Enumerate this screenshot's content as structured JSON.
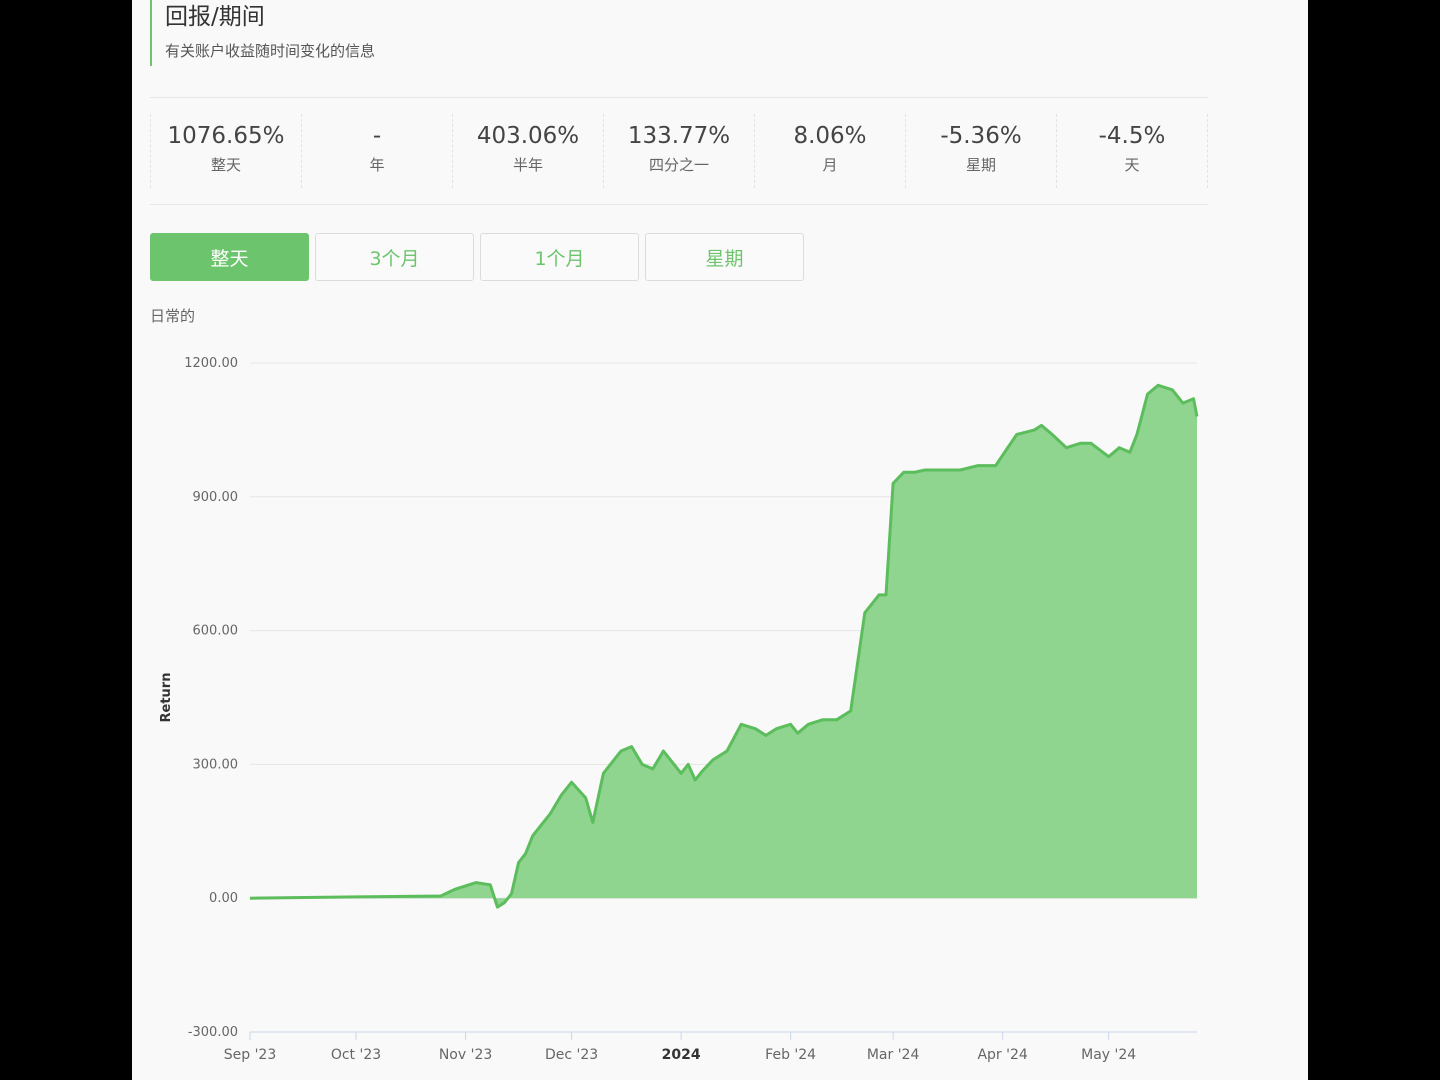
{
  "header": {
    "title": "回报/期间",
    "subtitle": "有关账户收益随时间变化的信息"
  },
  "stats": [
    {
      "value": "1076.65%",
      "label": "整天"
    },
    {
      "value": "-",
      "label": "年"
    },
    {
      "value": "403.06%",
      "label": "半年"
    },
    {
      "value": "133.77%",
      "label": "四分之一"
    },
    {
      "value": "8.06%",
      "label": "月"
    },
    {
      "value": "-5.36%",
      "label": "星期"
    },
    {
      "value": "-4.5%",
      "label": "天"
    }
  ],
  "tabs": [
    {
      "label": "整天",
      "active": true
    },
    {
      "label": "3个月",
      "active": false
    },
    {
      "label": "1个月",
      "active": false
    },
    {
      "label": "星期",
      "active": false
    }
  ],
  "chart_caption": "日常的",
  "colors": {
    "accent": "#6cc56c",
    "area_fill": "#8fd48f",
    "line": "#5cbd5c"
  },
  "chart_data": {
    "type": "area",
    "xlabel": "",
    "ylabel": "Return",
    "ylim": [
      -300,
      1200
    ],
    "yticks": [
      "1200.00",
      "900.00",
      "600.00",
      "300.00",
      "0.00",
      "-300.00"
    ],
    "yticks_values": [
      1200,
      900,
      600,
      300,
      0,
      -300
    ],
    "xlim": [
      "2023-09-01",
      "2024-05-26"
    ],
    "xticks": [
      {
        "date": "2023-09-01",
        "label": "Sep '23"
      },
      {
        "date": "2023-10-01",
        "label": "Oct '23"
      },
      {
        "date": "2023-11-01",
        "label": "Nov '23"
      },
      {
        "date": "2023-12-01",
        "label": "Dec '23"
      },
      {
        "date": "2024-01-01",
        "label": "2024",
        "bold": true
      },
      {
        "date": "2024-02-01",
        "label": "Feb '24"
      },
      {
        "date": "2024-03-01",
        "label": "Mar '24"
      },
      {
        "date": "2024-04-01",
        "label": "Apr '24"
      },
      {
        "date": "2024-05-01",
        "label": "May '24"
      }
    ],
    "grid": true,
    "series": [
      {
        "x": [
          "2023-09-01",
          "2023-10-01",
          "2023-10-25",
          "2023-10-29",
          "2023-11-04",
          "2023-11-08",
          "2023-11-10",
          "2023-11-12",
          "2023-11-14",
          "2023-11-16",
          "2023-11-18",
          "2023-11-20",
          "2023-11-22",
          "2023-11-25",
          "2023-11-28",
          "2023-12-01",
          "2023-12-05",
          "2023-12-07",
          "2023-12-10",
          "2023-12-15",
          "2023-12-18",
          "2023-12-21",
          "2023-12-24",
          "2023-12-27",
          "2024-01-01",
          "2024-01-03",
          "2024-01-05",
          "2024-01-07",
          "2024-01-10",
          "2024-01-14",
          "2024-01-18",
          "2024-01-22",
          "2024-01-25",
          "2024-01-28",
          "2024-02-01",
          "2024-02-03",
          "2024-02-06",
          "2024-02-10",
          "2024-02-14",
          "2024-02-18",
          "2024-02-22",
          "2024-02-26",
          "2024-02-28",
          "2024-03-01",
          "2024-03-04",
          "2024-03-07",
          "2024-03-10",
          "2024-03-11",
          "2024-03-15",
          "2024-03-20",
          "2024-03-25",
          "2024-03-30",
          "2024-04-05",
          "2024-04-10",
          "2024-04-12",
          "2024-04-15",
          "2024-04-19",
          "2024-04-23",
          "2024-04-26",
          "2024-05-01",
          "2024-05-04",
          "2024-05-07",
          "2024-05-09",
          "2024-05-10",
          "2024-05-12",
          "2024-05-15",
          "2024-05-19",
          "2024-05-22",
          "2024-05-25",
          "2024-05-26"
        ],
        "y": [
          0,
          3,
          5,
          20,
          35,
          30,
          -20,
          -10,
          10,
          80,
          100,
          140,
          160,
          190,
          230,
          260,
          225,
          170,
          280,
          330,
          340,
          300,
          290,
          330,
          280,
          300,
          265,
          285,
          310,
          330,
          390,
          380,
          365,
          380,
          390,
          370,
          390,
          400,
          400,
          420,
          640,
          680,
          680,
          930,
          955,
          955,
          960,
          960,
          960,
          960,
          970,
          970,
          1040,
          1050,
          1060,
          1040,
          1010,
          1020,
          1020,
          990,
          1010,
          1000,
          1040,
          1070,
          1130,
          1150,
          1140,
          1110,
          1120,
          1080
        ]
      }
    ]
  }
}
